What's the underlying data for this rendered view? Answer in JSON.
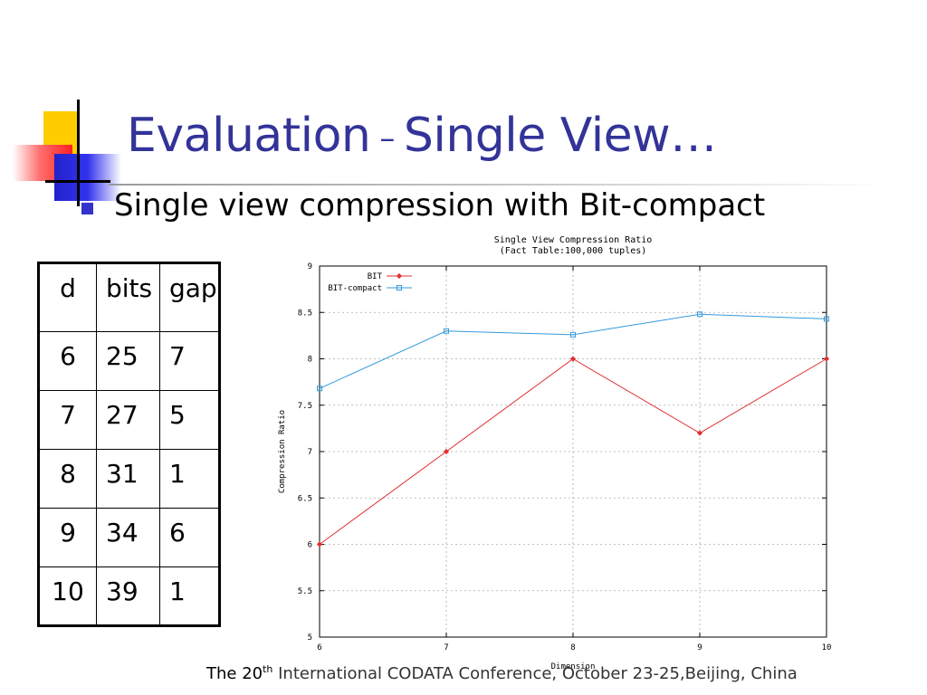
{
  "slide": {
    "title_main": "Evaluation",
    "title_dash": "–",
    "title_rest": "Single View…",
    "bullet": "Single view compression with Bit-compact",
    "footer_prefix": "The 20",
    "footer_sup": "th",
    "footer_rest": " International CODATA Conference, October 23-25,Beijing, China"
  },
  "table": {
    "headers": [
      "d",
      "bits",
      "gap"
    ],
    "rows": [
      [
        "6",
        "25",
        "7"
      ],
      [
        "7",
        "27",
        "5"
      ],
      [
        "8",
        "31",
        "1"
      ],
      [
        "9",
        "34",
        "6"
      ],
      [
        "10",
        "39",
        "1"
      ]
    ]
  },
  "colors": {
    "title": "#333399",
    "bullet": "#3333cc",
    "bit": "#e03030",
    "bit_compact": "#3399dd",
    "grid": "#aaaaaa"
  },
  "chart_data": {
    "type": "line",
    "title": "Single View Compression Ratio",
    "subtitle": "(Fact Table:100,000  tuples)",
    "xlabel": "Dimension",
    "ylabel": "Compression Ratio",
    "x": [
      6,
      7,
      8,
      9,
      10
    ],
    "xticks": [
      "6",
      "7",
      "8",
      "9",
      "10"
    ],
    "yticks": [
      "5",
      "5.5",
      "6",
      "6.5",
      "7",
      "7.5",
      "8",
      "8.5",
      "9"
    ],
    "xlim": [
      6,
      10
    ],
    "ylim": [
      5,
      9
    ],
    "grid": true,
    "legend_position": "top-left",
    "series": [
      {
        "name": "BIT",
        "values": [
          6.0,
          7.0,
          8.0,
          7.2,
          8.0
        ],
        "color": "#e03030",
        "marker": "diamond"
      },
      {
        "name": "BIT-compact",
        "values": [
          7.68,
          8.3,
          8.26,
          8.48,
          8.43
        ],
        "color": "#3399dd",
        "marker": "square"
      }
    ]
  }
}
